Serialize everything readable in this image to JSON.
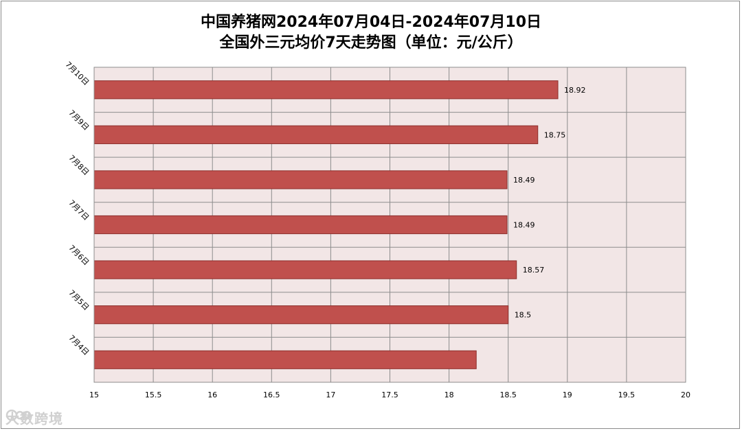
{
  "chart_data": {
    "type": "bar",
    "orientation": "horizontal",
    "title_line1": "中国养猪网2024年07月04日-2024年07月10日",
    "title_line2": "全国外三元均价7天走势图（单位：元/公斤）",
    "categories": [
      "7月10日",
      "7月9日",
      "7月8日",
      "7月7日",
      "7月6日",
      "7月5日",
      "7月4日"
    ],
    "values": [
      18.92,
      18.75,
      18.49,
      18.49,
      18.57,
      18.5,
      18.23
    ],
    "data_labels": [
      "18.92",
      "18.75",
      "18.49",
      "18.49",
      "18.57",
      "18.5",
      ""
    ],
    "xlim": [
      15,
      20
    ],
    "x_ticks": [
      "15",
      "15.5",
      "16",
      "16.5",
      "17",
      "17.5",
      "18",
      "18.5",
      "19",
      "19.5",
      "20"
    ],
    "grid": true,
    "colors": {
      "bar_fill": "#c0504d",
      "bar_stroke": "#8c2f2c",
      "plot_background": "#f2e6e6",
      "grid_line": "#8c8c8c"
    }
  },
  "watermark": {
    "text": "大数跨境",
    "icon": "brand-logo-icon"
  }
}
